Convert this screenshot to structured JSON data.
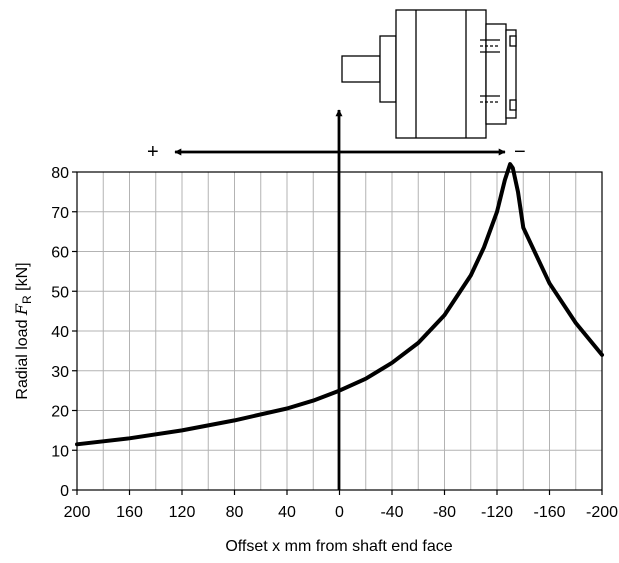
{
  "chart_data": {
    "type": "line",
    "xlabel": "Offset x mm from shaft end face",
    "ylabel_main": "Radial load ",
    "ylabel_symbol": "F",
    "ylabel_subscript": "R",
    "ylabel_unit": " [kN]",
    "x_ticks": [
      200,
      160,
      120,
      80,
      40,
      0,
      -40,
      -80,
      -120,
      -160,
      -200
    ],
    "x_tick_labels": [
      "200",
      "160",
      "120",
      "80",
      "40",
      "0",
      "-40",
      "-80",
      "-120",
      "-160",
      "-200"
    ],
    "y_ticks": [
      0,
      10,
      20,
      30,
      40,
      50,
      60,
      70,
      80
    ],
    "y_tick_labels": [
      "0",
      "10",
      "20",
      "30",
      "40",
      "50",
      "60",
      "70",
      "80"
    ],
    "xlim": [
      200,
      -200
    ],
    "ylim": [
      0,
      80
    ],
    "x_reversed": true,
    "grid": true,
    "series": [
      {
        "x": [
          200,
          160,
          120,
          80,
          40,
          20,
          0,
          -20,
          -40,
          -60,
          -80,
          -100,
          -110,
          -120,
          -126,
          -130,
          -132,
          -136,
          -140,
          -160,
          -180,
          -200
        ],
        "y": [
          11.5,
          13,
          15,
          17.5,
          20.5,
          22.5,
          25,
          28,
          32,
          37,
          44,
          54,
          61,
          70,
          78,
          82,
          81,
          75,
          66,
          52,
          42,
          34
        ]
      }
    ],
    "direction_labels": {
      "plus": "+",
      "minus": "−"
    }
  },
  "colors": {
    "curve": "#000000",
    "grid": "#b3b3b3",
    "frame": "#000000",
    "arrows": "#000000"
  },
  "illustration": {
    "name": "hydraulic-motor-icon"
  }
}
